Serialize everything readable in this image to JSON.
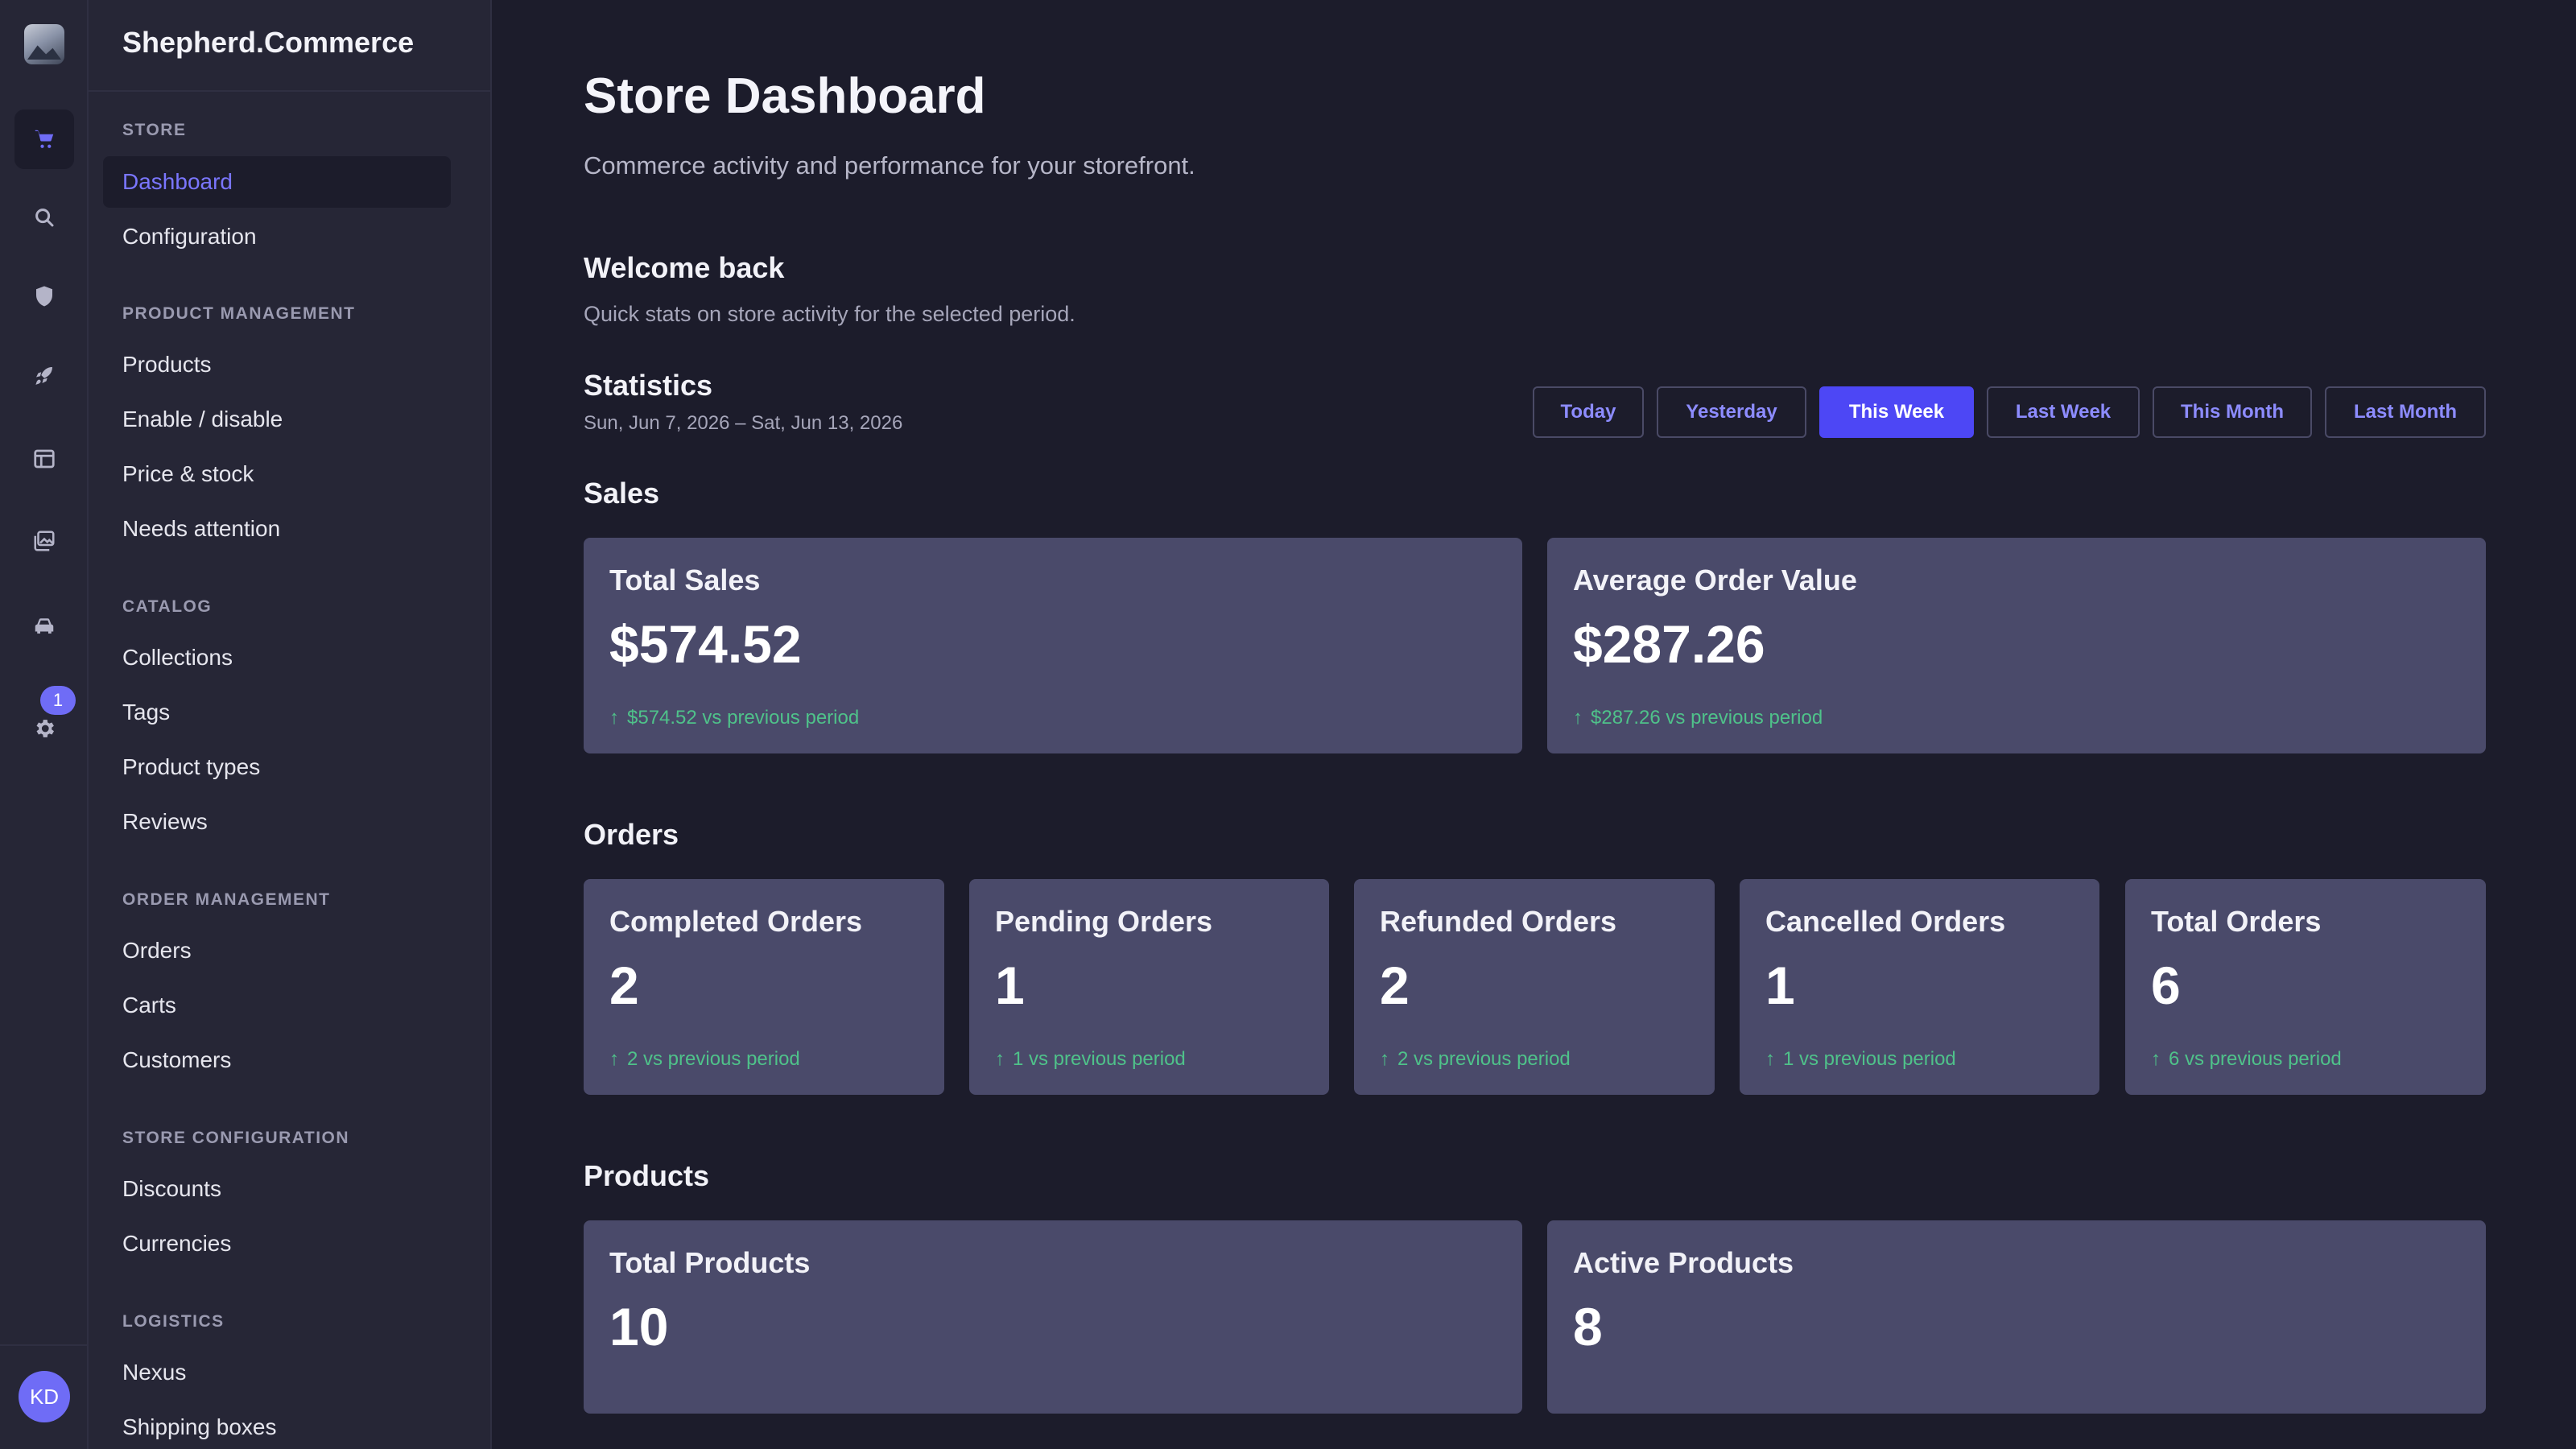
{
  "app": {
    "brand": "Shepherd.Commerce"
  },
  "rail": {
    "icons": [
      "logo-icon",
      "cart-icon",
      "search-icon",
      "shield-icon",
      "rocket-icon",
      "layout-icon",
      "images-icon",
      "car-icon",
      "settings-icon"
    ],
    "badge_count": "1",
    "avatar_initials": "KD",
    "accent": "#6f6cf6"
  },
  "sidebar": {
    "sections": [
      {
        "title": "STORE",
        "items": [
          "Dashboard",
          "Configuration"
        ]
      },
      {
        "title": "PRODUCT MANAGEMENT",
        "items": [
          "Products",
          "Enable / disable",
          "Price & stock",
          "Needs attention"
        ]
      },
      {
        "title": "CATALOG",
        "items": [
          "Collections",
          "Tags",
          "Product types",
          "Reviews"
        ]
      },
      {
        "title": "ORDER MANAGEMENT",
        "items": [
          "Orders",
          "Carts",
          "Customers"
        ]
      },
      {
        "title": "STORE CONFIGURATION",
        "items": [
          "Discounts",
          "Currencies"
        ]
      },
      {
        "title": "LOGISTICS",
        "items": [
          "Nexus",
          "Shipping boxes"
        ]
      }
    ],
    "active_item": "Dashboard"
  },
  "page": {
    "title": "Store Dashboard",
    "subtitle": "Commerce activity and performance for your storefront.",
    "welcome_title": "Welcome back",
    "welcome_sub": "Quick stats on store activity for the selected period.",
    "stats_title": "Statistics",
    "date_range": "Sun, Jun 7, 2026 – Sat, Jun 13, 2026"
  },
  "periods": {
    "options": [
      "Today",
      "Yesterday",
      "This Week",
      "Last Week",
      "This Month",
      "Last Month"
    ],
    "selected": "This Week"
  },
  "sales": {
    "heading": "Sales",
    "cards": [
      {
        "title": "Total Sales",
        "value": "$574.52",
        "trend": "$574.52 vs previous period"
      },
      {
        "title": "Average Order Value",
        "value": "$287.26",
        "trend": "$287.26 vs previous period"
      }
    ]
  },
  "orders": {
    "heading": "Orders",
    "cards": [
      {
        "title": "Completed Orders",
        "value": "2",
        "trend": "2 vs previous period"
      },
      {
        "title": "Pending Orders",
        "value": "1",
        "trend": "1 vs previous period"
      },
      {
        "title": "Refunded Orders",
        "value": "2",
        "trend": "2 vs previous period"
      },
      {
        "title": "Cancelled Orders",
        "value": "1",
        "trend": "1 vs previous period"
      },
      {
        "title": "Total Orders",
        "value": "6",
        "trend": "6 vs previous period"
      }
    ]
  },
  "products": {
    "heading": "Products",
    "cards": [
      {
        "title": "Total Products",
        "value": "10"
      },
      {
        "title": "Active Products",
        "value": "8"
      }
    ]
  },
  "colors": {
    "background": "#1c1c2b",
    "card": "#4a4a6a",
    "primary": "#4d47f5",
    "trend_up": "#4fc28a"
  }
}
